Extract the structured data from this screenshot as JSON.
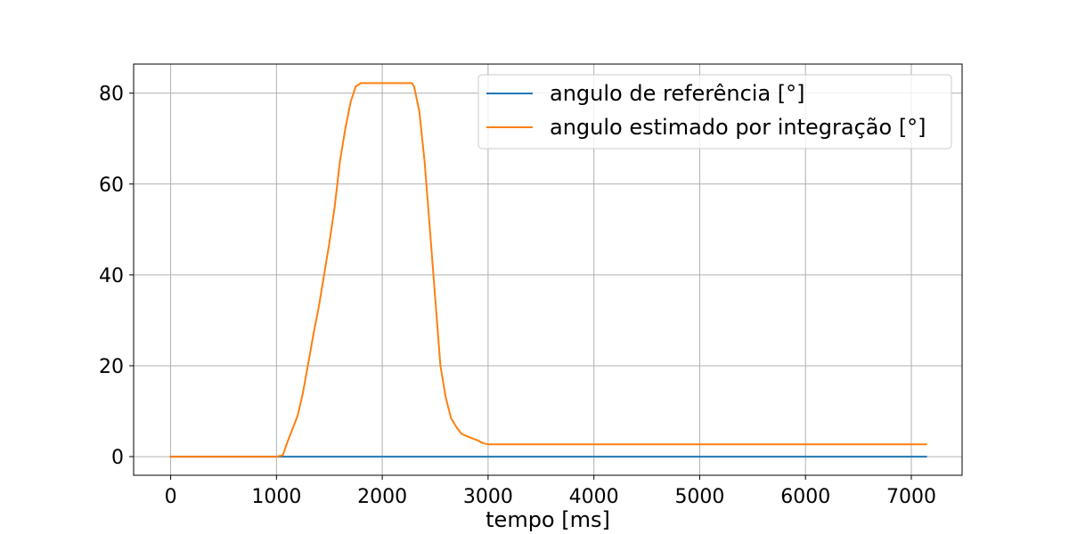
{
  "chart_data": {
    "type": "line",
    "xlabel": "tempo [ms]",
    "ylabel": "",
    "xlim": [
      -350,
      7480
    ],
    "ylim": [
      -4.1,
      86.4
    ],
    "xticks": [
      0,
      1000,
      2000,
      3000,
      4000,
      5000,
      6000,
      7000
    ],
    "yticks": [
      0,
      20,
      40,
      60,
      80
    ],
    "grid": true,
    "legend_position": "top-right",
    "series": [
      {
        "name": "angulo de referência [°]",
        "color": "#1f77b4",
        "x": [
          0,
          7140
        ],
        "y": [
          0,
          0
        ]
      },
      {
        "name": "angulo estimado por integração [°]",
        "color": "#ff7f0e",
        "x": [
          0,
          1000,
          1060,
          1100,
          1150,
          1200,
          1250,
          1300,
          1350,
          1400,
          1450,
          1500,
          1550,
          1600,
          1650,
          1700,
          1750,
          1800,
          1850,
          1880,
          2000,
          2100,
          2200,
          2280,
          2300,
          2350,
          2400,
          2450,
          2500,
          2550,
          2600,
          2650,
          2700,
          2750,
          2800,
          2850,
          2900,
          2950,
          3000,
          3050,
          3100,
          3200,
          4000,
          5000,
          6000,
          7140
        ],
        "y": [
          0,
          0,
          0.3,
          3,
          6,
          9,
          14,
          20.5,
          27,
          33,
          40,
          47,
          55,
          65,
          72,
          78,
          81.5,
          82.2,
          82.2,
          82.2,
          82.2,
          82.2,
          82.2,
          82.2,
          81.5,
          76,
          65,
          50,
          35,
          20,
          13,
          8.5,
          6.5,
          5,
          4.5,
          4,
          3.6,
          3,
          2.7,
          2.7,
          2.7,
          2.7,
          2.7,
          2.7,
          2.7,
          2.7
        ]
      }
    ]
  }
}
